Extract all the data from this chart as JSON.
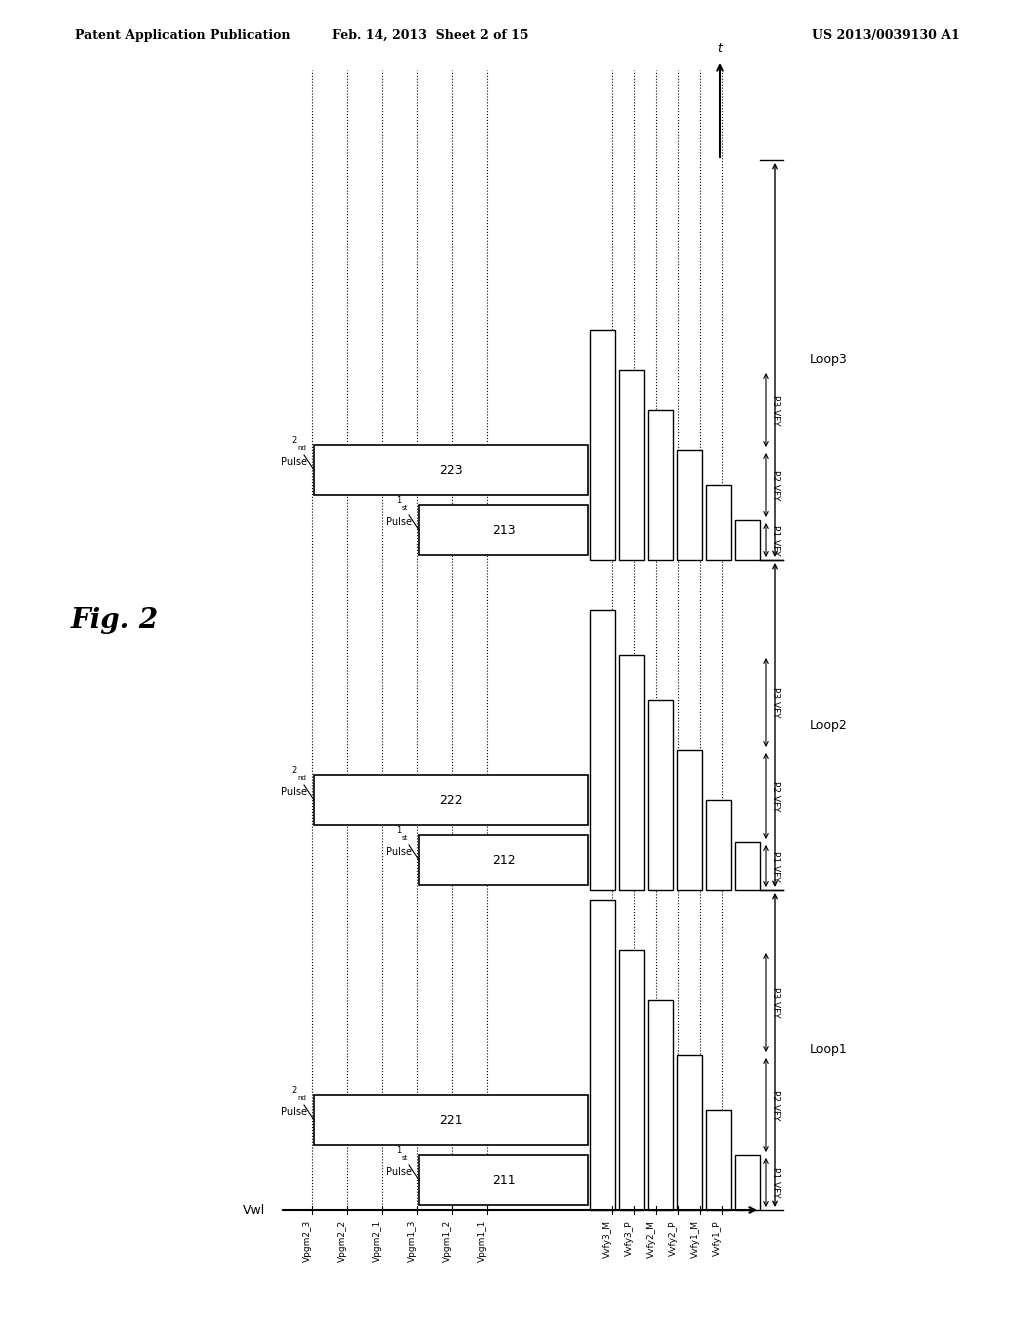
{
  "bg_color": "#ffffff",
  "header_left": "Patent Application Publication",
  "header_mid": "Feb. 14, 2013  Sheet 2 of 15",
  "header_right": "US 2013/0039130 A1",
  "fig_label": "Fig. 2",
  "y_axis_label": "Vwl",
  "x_axis_labels": [
    "Vpgm2_3",
    "Vpgm2_2",
    "Vpgm2_1",
    "Vpgm1_3",
    "Vpgm1_2",
    "Vpgm1_1",
    "Vvfy3_M",
    "Vvfy3_P",
    "Vvfy2_M",
    "Vvfy2_P",
    "Vvfy1_M",
    "Vvfy1_P"
  ],
  "pulse_numbers_1st": [
    "211",
    "212",
    "213"
  ],
  "pulse_numbers_2nd": [
    "221",
    "222",
    "223"
  ],
  "loop_labels": [
    "Loop1",
    "Loop2",
    "Loop3"
  ],
  "vfy_labels": [
    "P1 VFY",
    "P2 VFY",
    "P3 VFY"
  ]
}
